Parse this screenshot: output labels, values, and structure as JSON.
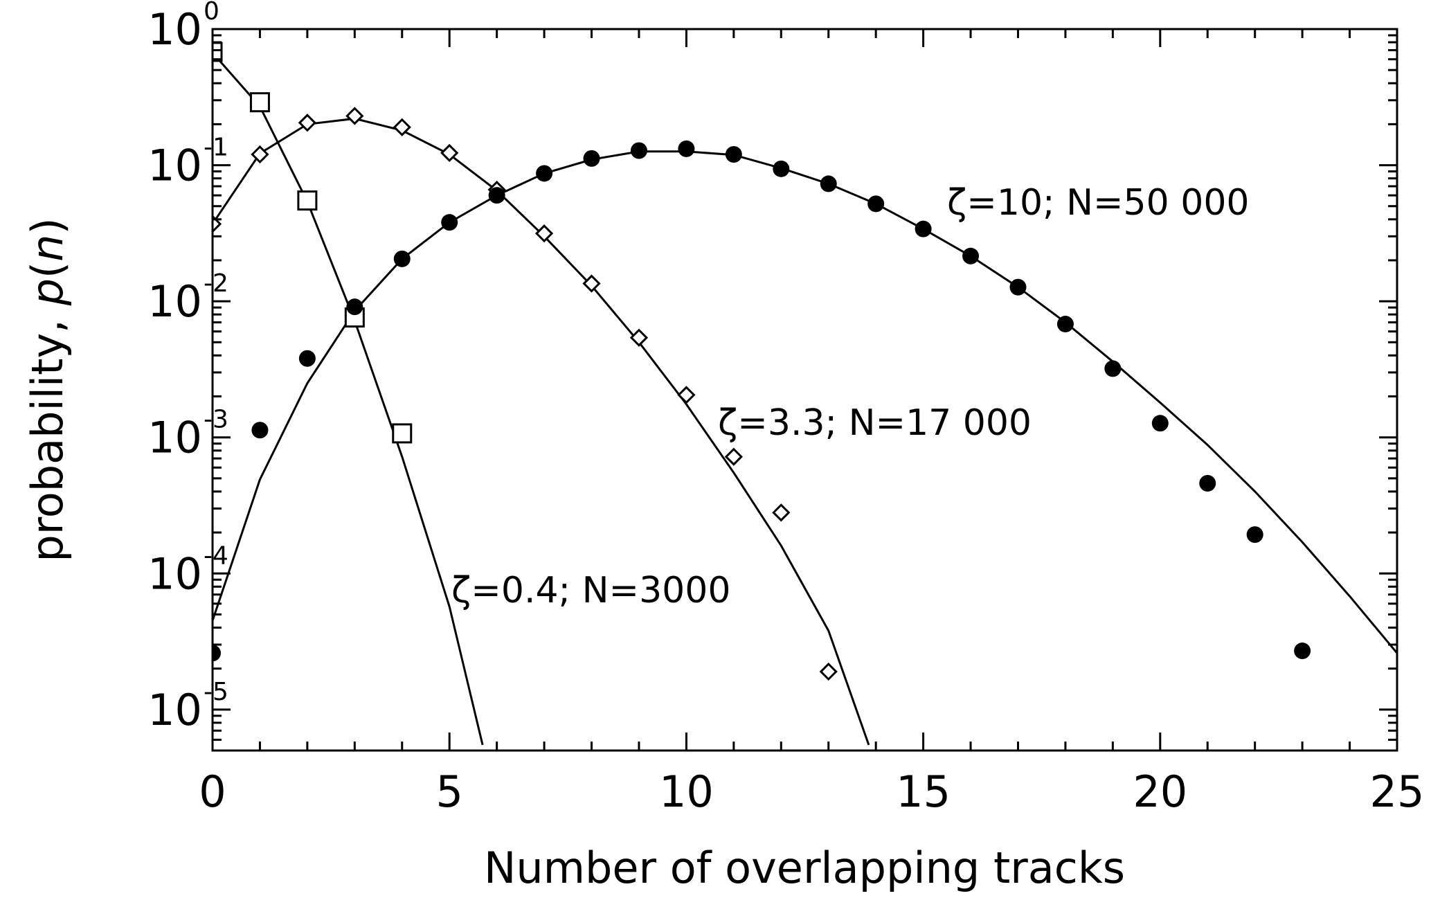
{
  "chart_data": {
    "type": "scatter",
    "xlabel": "Number of overlapping tracks",
    "ylabel_prefix": "probability, ",
    "ylabel_italic": "p",
    "ylabel_suffix_open": "(",
    "ylabel_var": "n",
    "ylabel_suffix_close": ")",
    "xlim": [
      0,
      25
    ],
    "ylim": [
      5e-06,
      1
    ],
    "yscale": "log",
    "grid": false,
    "x_ticks": [
      0,
      5,
      10,
      15,
      20,
      25
    ],
    "x_tick_labels": [
      "0",
      "5",
      "10",
      "15",
      "20",
      "25"
    ],
    "y_ticks": [
      {
        "value": 1,
        "base": "10",
        "exp": "0"
      },
      {
        "value": 0.1,
        "base": "10",
        "exp": "-1"
      },
      {
        "value": 0.01,
        "base": "10",
        "exp": "-2"
      },
      {
        "value": 0.001,
        "base": "10",
        "exp": "-3"
      },
      {
        "value": 0.0001,
        "base": "10",
        "exp": "-4"
      },
      {
        "value": 1e-05,
        "base": "10",
        "exp": "-5"
      }
    ],
    "annotations": [
      {
        "text": "ζ=10; N=50 000",
        "series": "zeta10"
      },
      {
        "text": "ζ=3.3; N=17 000",
        "series": "zeta3.3"
      },
      {
        "text": "ζ=0.4; N=3000",
        "series": "zeta0.4"
      }
    ],
    "series": [
      {
        "id": "zeta0.4",
        "marker": "square",
        "points": [
          [
            0,
            0.68
          ],
          [
            1,
            0.29
          ],
          [
            2,
            0.055
          ],
          [
            3,
            0.0076
          ],
          [
            4,
            0.00107
          ]
        ],
        "curve": [
          [
            0,
            0.67
          ],
          [
            1,
            0.27
          ],
          [
            2,
            0.054
          ],
          [
            3,
            0.0072
          ],
          [
            4,
            0.00072
          ],
          [
            5,
            5.7e-05
          ],
          [
            5.7,
            5.5e-06
          ]
        ]
      },
      {
        "id": "zeta3.3",
        "marker": "diamond",
        "points": [
          [
            0,
            0.037
          ],
          [
            1,
            0.12
          ],
          [
            2,
            0.205
          ],
          [
            3,
            0.23
          ],
          [
            4,
            0.19
          ],
          [
            5,
            0.123
          ],
          [
            6,
            0.066
          ],
          [
            7,
            0.0315
          ],
          [
            8,
            0.0135
          ],
          [
            9,
            0.0054
          ],
          [
            10,
            0.00205
          ],
          [
            11,
            0.00072
          ],
          [
            12,
            0.00028
          ],
          [
            13,
            1.9e-05
          ]
        ],
        "curve": [
          [
            0,
            0.037
          ],
          [
            1,
            0.122
          ],
          [
            2,
            0.2
          ],
          [
            3,
            0.22
          ],
          [
            4,
            0.18
          ],
          [
            5,
            0.12
          ],
          [
            6,
            0.065
          ],
          [
            7,
            0.03
          ],
          [
            8,
            0.013
          ],
          [
            9,
            0.005
          ],
          [
            10,
            0.00175
          ],
          [
            11,
            0.00055
          ],
          [
            12,
            0.00016
          ],
          [
            13,
            3.8e-05
          ],
          [
            13.85,
            5.5e-06
          ]
        ]
      },
      {
        "id": "zeta10",
        "marker": "filled-circle",
        "points": [
          [
            0,
            2.6e-05
          ],
          [
            1,
            0.00113
          ],
          [
            2,
            0.0038
          ],
          [
            3,
            0.0091
          ],
          [
            4,
            0.0205
          ],
          [
            5,
            0.038
          ],
          [
            6,
            0.06
          ],
          [
            7,
            0.087
          ],
          [
            8,
            0.112
          ],
          [
            9,
            0.128
          ],
          [
            10,
            0.132
          ],
          [
            11,
            0.12
          ],
          [
            12,
            0.094
          ],
          [
            13,
            0.073
          ],
          [
            14,
            0.052
          ],
          [
            15,
            0.034
          ],
          [
            16,
            0.0215
          ],
          [
            17,
            0.0127
          ],
          [
            18,
            0.0068
          ],
          [
            19,
            0.0032
          ],
          [
            20,
            0.00127
          ],
          [
            21,
            0.00046
          ],
          [
            22,
            0.000193
          ],
          [
            23,
            2.7e-05
          ]
        ],
        "curve": [
          [
            0,
            4.5e-05
          ],
          [
            1,
            0.00049
          ],
          [
            2,
            0.0025
          ],
          [
            3,
            0.0085
          ],
          [
            4,
            0.0205
          ],
          [
            5,
            0.038
          ],
          [
            6,
            0.06
          ],
          [
            7,
            0.087
          ],
          [
            8,
            0.11
          ],
          [
            9,
            0.126
          ],
          [
            10,
            0.126
          ],
          [
            11,
            0.119
          ],
          [
            12,
            0.095
          ],
          [
            13,
            0.073
          ],
          [
            14,
            0.052
          ],
          [
            15,
            0.034
          ],
          [
            16,
            0.0215
          ],
          [
            17,
            0.0127
          ],
          [
            18,
            0.007
          ],
          [
            19,
            0.0036
          ],
          [
            20,
            0.0018
          ],
          [
            21,
            0.00088
          ],
          [
            22,
            0.0004
          ],
          [
            23,
            0.00017
          ],
          [
            24,
            6.8e-05
          ],
          [
            25,
            2.6e-05
          ]
        ]
      }
    ]
  }
}
